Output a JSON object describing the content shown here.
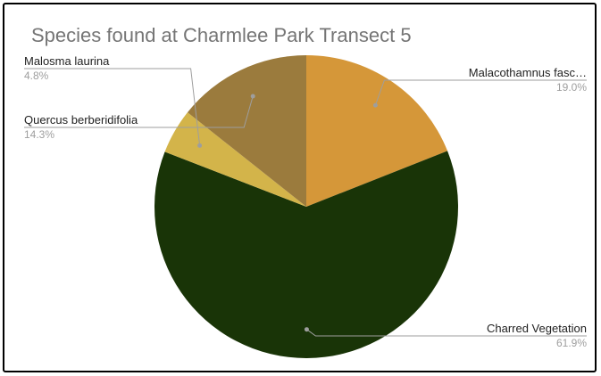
{
  "chart_data": {
    "type": "pie",
    "title": "Species found at Charmlee Park Transect 5",
    "start_angle_deg": 0,
    "direction": "clockwise",
    "slices": [
      {
        "label": "Malacothamnus fasc…",
        "value": 19.0,
        "pct_label": "19.0%",
        "color": "#d59739",
        "label_side": "right"
      },
      {
        "label": "Charred Vegetation",
        "value": 61.9,
        "pct_label": "61.9%",
        "color": "#193407",
        "label_side": "right"
      },
      {
        "label": "Malosma laurina",
        "value": 4.8,
        "pct_label": "4.8%",
        "color": "#d3b44a",
        "label_side": "left"
      },
      {
        "label": "Quercus berberidifolia",
        "value": 14.3,
        "pct_label": "14.3%",
        "color": "#9b7b3d",
        "label_side": "left"
      }
    ]
  }
}
